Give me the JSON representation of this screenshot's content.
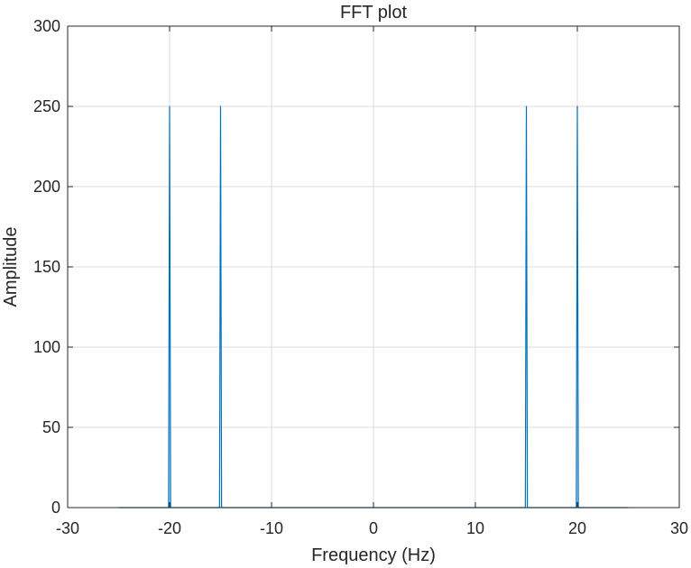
{
  "chart_data": {
    "type": "line",
    "title": "FFT plot",
    "xlabel": "Frequency (Hz)",
    "ylabel": "Amplitude",
    "xlim": [
      -30,
      30
    ],
    "ylim": [
      0,
      300
    ],
    "xticks": [
      -30,
      -20,
      -10,
      0,
      10,
      20,
      30
    ],
    "yticks": [
      0,
      50,
      100,
      150,
      200,
      250,
      300
    ],
    "xtick_labels": [
      "-30",
      "-20",
      "-10",
      "0",
      "10",
      "20",
      "30"
    ],
    "ytick_labels": [
      "0",
      "50",
      "100",
      "150",
      "200",
      "250",
      "300"
    ],
    "grid": true,
    "line_color": "#0072BD",
    "series": [
      {
        "x": [
          -25,
          -20.1,
          -20,
          -19.9,
          -15.1,
          -15,
          -14.9,
          14.9,
          15,
          15.1,
          19.9,
          20,
          20.1,
          25
        ],
        "y": [
          0,
          0,
          250,
          0,
          0,
          250,
          0,
          0,
          250,
          0,
          0,
          250,
          0,
          0
        ]
      }
    ]
  }
}
